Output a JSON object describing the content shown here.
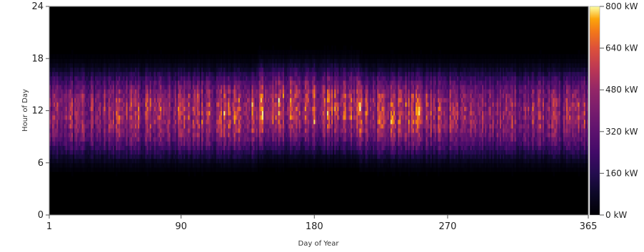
{
  "chart_data": {
    "type": "heatmap",
    "title": "",
    "xlabel": "Day of Year",
    "ylabel": "Hour of Day",
    "x_range": [
      1,
      365
    ],
    "y_range": [
      0,
      24
    ],
    "x_ticks": [
      1,
      90,
      180,
      270,
      365
    ],
    "y_ticks": [
      0,
      6,
      12,
      18,
      24
    ],
    "colorscale": {
      "name": "inferno",
      "min": 0,
      "max": 800,
      "unit": "kW",
      "ticks": [
        "0 kW",
        "160 kW",
        "320 kW",
        "480 kW",
        "640 kW",
        "800 kW"
      ],
      "tick_values": [
        0,
        160,
        320,
        480,
        640,
        800
      ]
    },
    "daily_profile": {
      "hours": [
        0,
        1,
        2,
        3,
        4,
        5,
        6,
        7,
        8,
        9,
        10,
        11,
        12,
        13,
        14,
        15,
        16,
        17,
        18,
        19,
        20,
        21,
        22,
        23
      ],
      "typical_kw": [
        0,
        0,
        0,
        0,
        0,
        5,
        60,
        180,
        330,
        470,
        560,
        610,
        620,
        590,
        520,
        400,
        240,
        90,
        15,
        0,
        0,
        0,
        0,
        0
      ]
    },
    "grid": false,
    "legend": "right"
  }
}
